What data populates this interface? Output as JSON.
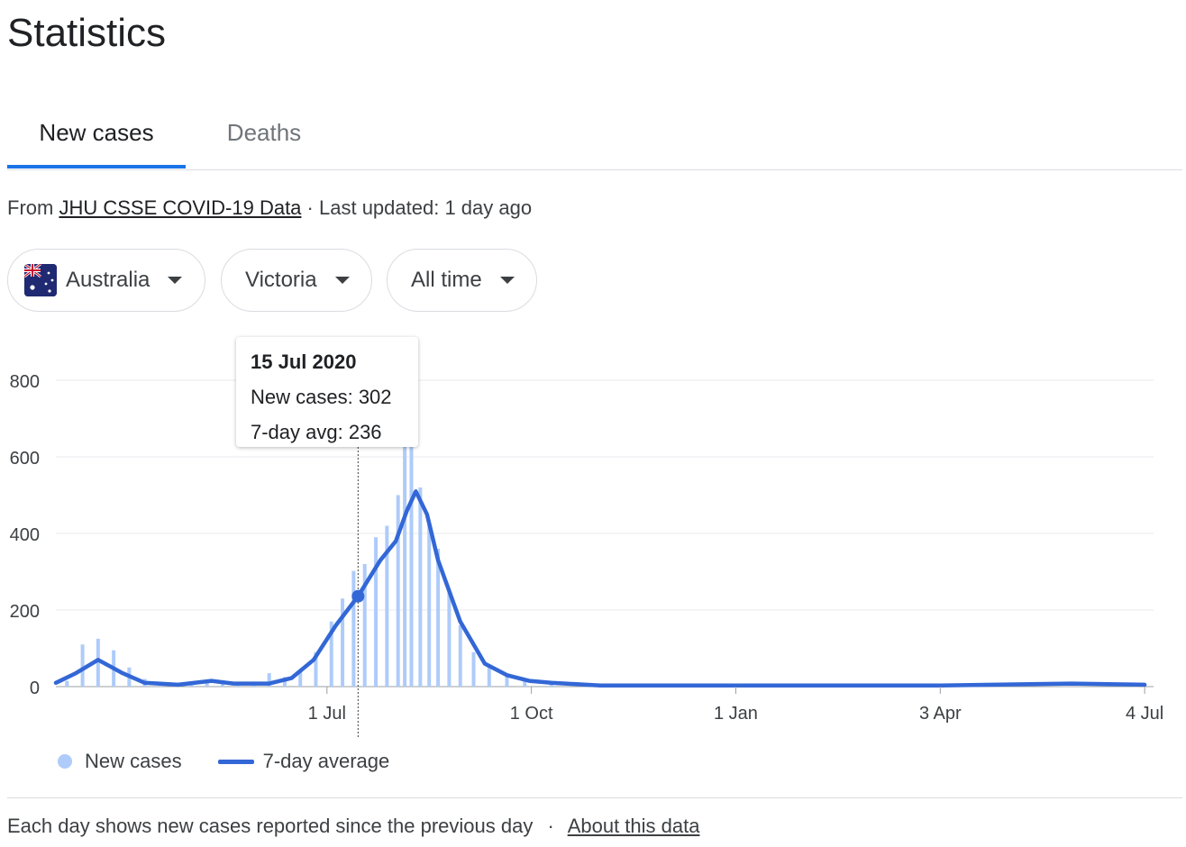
{
  "page_title": "Statistics",
  "tabs": [
    {
      "label": "New cases",
      "active": true
    },
    {
      "label": "Deaths",
      "active": false
    }
  ],
  "source": {
    "prefix": "From",
    "link": "JHU CSSE COVID-19 Data",
    "separator": "·",
    "updated": "Last updated: 1 day ago"
  },
  "filters": {
    "country": "Australia",
    "region": "Victoria",
    "range": "All time"
  },
  "tooltip": {
    "date": "15 Jul 2020",
    "new_cases": "New cases: 302",
    "avg": "7-day avg: 236"
  },
  "legend": {
    "new_cases": "New cases",
    "avg": "7-day average"
  },
  "footer": {
    "text": "Each day shows new cases reported since the previous day",
    "separator": "·",
    "link": "About this data"
  },
  "colors": {
    "bars": "#aecbfa",
    "line": "#3367d6",
    "accent": "#1a73e8"
  },
  "chart_data": {
    "type": "bar",
    "title": "",
    "xlabel": "",
    "ylabel": "",
    "ylim": [
      0,
      800
    ],
    "yticks": [
      0,
      200,
      400,
      600,
      800
    ],
    "xticks": [
      "1 Jul",
      "1 Oct",
      "1 Jan",
      "3 Apr",
      "4 Jul"
    ],
    "series": [
      {
        "name": "New cases",
        "type": "bar",
        "x": [
          "2020-03-06",
          "2020-03-13",
          "2020-03-20",
          "2020-03-27",
          "2020-04-03",
          "2020-04-10",
          "2020-04-17",
          "2020-04-24",
          "2020-05-01",
          "2020-05-08",
          "2020-05-15",
          "2020-05-22",
          "2020-05-29",
          "2020-06-05",
          "2020-06-12",
          "2020-06-19",
          "2020-06-26",
          "2020-07-03",
          "2020-07-08",
          "2020-07-13",
          "2020-07-18",
          "2020-07-23",
          "2020-07-28",
          "2020-08-02",
          "2020-08-05",
          "2020-08-08",
          "2020-08-12",
          "2020-08-16",
          "2020-08-20",
          "2020-08-25",
          "2020-08-30",
          "2020-09-05",
          "2020-09-12",
          "2020-09-20",
          "2020-09-28",
          "2020-10-10",
          "2021-07-04"
        ],
        "values": [
          15,
          110,
          125,
          95,
          50,
          20,
          10,
          8,
          10,
          18,
          14,
          8,
          10,
          35,
          25,
          40,
          90,
          170,
          230,
          302,
          320,
          390,
          420,
          500,
          640,
          660,
          520,
          430,
          360,
          250,
          160,
          90,
          55,
          30,
          15,
          5,
          5
        ]
      },
      {
        "name": "7-day average",
        "type": "line",
        "x": [
          "2020-03-01",
          "2020-03-10",
          "2020-03-20",
          "2020-03-31",
          "2020-04-10",
          "2020-04-25",
          "2020-05-10",
          "2020-05-20",
          "2020-06-05",
          "2020-06-15",
          "2020-06-25",
          "2020-07-05",
          "2020-07-15",
          "2020-07-25",
          "2020-08-01",
          "2020-08-06",
          "2020-08-10",
          "2020-08-15",
          "2020-08-20",
          "2020-08-30",
          "2020-09-10",
          "2020-09-20",
          "2020-09-30",
          "2020-10-10",
          "2020-11-01",
          "2021-01-01",
          "2021-04-03",
          "2021-06-01",
          "2021-07-04"
        ],
        "values": [
          10,
          35,
          70,
          35,
          10,
          5,
          15,
          8,
          8,
          22,
          70,
          160,
          236,
          330,
          380,
          460,
          510,
          450,
          330,
          170,
          60,
          30,
          15,
          10,
          3,
          3,
          3,
          8,
          5
        ]
      }
    ],
    "highlight": {
      "x": "2020-07-15",
      "new_cases": 302,
      "avg": 236
    },
    "grid": true,
    "legend": "bottom-left"
  }
}
